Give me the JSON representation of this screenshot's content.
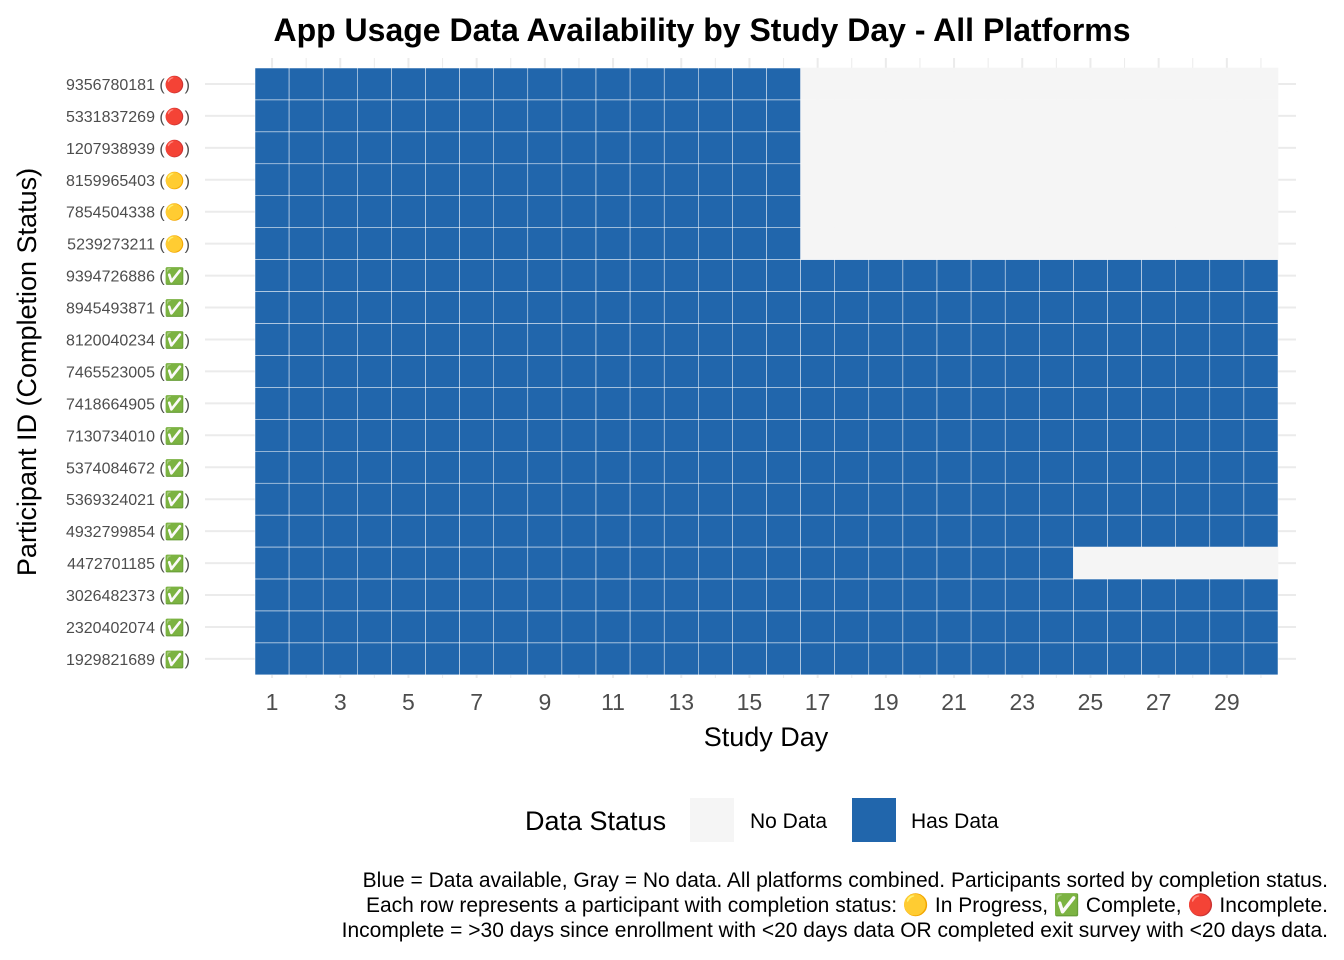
{
  "chart_data": {
    "type": "heatmap",
    "title": "App Usage Data Availability by Study Day - All Platforms",
    "xlabel": "Study Day",
    "ylabel": "Participant ID (Completion Status)",
    "x_days": [
      1,
      30
    ],
    "x_ticks": [
      "1",
      "3",
      "5",
      "7",
      "9",
      "11",
      "13",
      "15",
      "17",
      "19",
      "21",
      "23",
      "25",
      "27",
      "29"
    ],
    "grid": true,
    "legend": {
      "title": "Data Status",
      "position": "bottom",
      "items": [
        {
          "label": "No Data",
          "color": "#f5f5f5"
        },
        {
          "label": "Has Data",
          "color": "#2166ac"
        }
      ]
    },
    "status_icons": {
      "incomplete": "🔴",
      "in_progress": "🟡",
      "complete": "✅"
    },
    "participants": [
      {
        "id": "9356780181",
        "status": "incomplete",
        "days_with_data": [
          1,
          16
        ]
      },
      {
        "id": "5331837269",
        "status": "incomplete",
        "days_with_data": [
          1,
          16
        ]
      },
      {
        "id": "1207938939",
        "status": "incomplete",
        "days_with_data": [
          1,
          16
        ]
      },
      {
        "id": "8159965403",
        "status": "in_progress",
        "days_with_data": [
          1,
          16
        ]
      },
      {
        "id": "7854504338",
        "status": "in_progress",
        "days_with_data": [
          1,
          16
        ]
      },
      {
        "id": "5239273211",
        "status": "in_progress",
        "days_with_data": [
          1,
          16
        ]
      },
      {
        "id": "9394726886",
        "status": "complete",
        "days_with_data": [
          1,
          30
        ]
      },
      {
        "id": "8945493871",
        "status": "complete",
        "days_with_data": [
          1,
          30
        ]
      },
      {
        "id": "8120040234",
        "status": "complete",
        "days_with_data": [
          1,
          30
        ]
      },
      {
        "id": "7465523005",
        "status": "complete",
        "days_with_data": [
          1,
          30
        ]
      },
      {
        "id": "7418664905",
        "status": "complete",
        "days_with_data": [
          1,
          30
        ]
      },
      {
        "id": "7130734010",
        "status": "complete",
        "days_with_data": [
          1,
          30
        ]
      },
      {
        "id": "5374084672",
        "status": "complete",
        "days_with_data": [
          1,
          30
        ]
      },
      {
        "id": "5369324021",
        "status": "complete",
        "days_with_data": [
          1,
          30
        ]
      },
      {
        "id": "4932799854",
        "status": "complete",
        "days_with_data": [
          1,
          30
        ]
      },
      {
        "id": "4472701185",
        "status": "complete",
        "days_with_data": [
          1,
          24
        ]
      },
      {
        "id": "3026482373",
        "status": "complete",
        "days_with_data": [
          1,
          30
        ]
      },
      {
        "id": "2320402074",
        "status": "complete",
        "days_with_data": [
          1,
          30
        ]
      },
      {
        "id": "1929821689",
        "status": "complete",
        "days_with_data": [
          1,
          30
        ]
      }
    ],
    "caption_lines": [
      "Blue = Data available, Gray = No data. All platforms combined. Participants sorted by completion status.",
      "Each row represents a participant with completion status: 🟡 In Progress, ✅ Complete, 🔴 Incomplete.",
      "Incomplete = >30 days since enrollment with <20 days data OR completed exit survey with <20 days data."
    ]
  }
}
